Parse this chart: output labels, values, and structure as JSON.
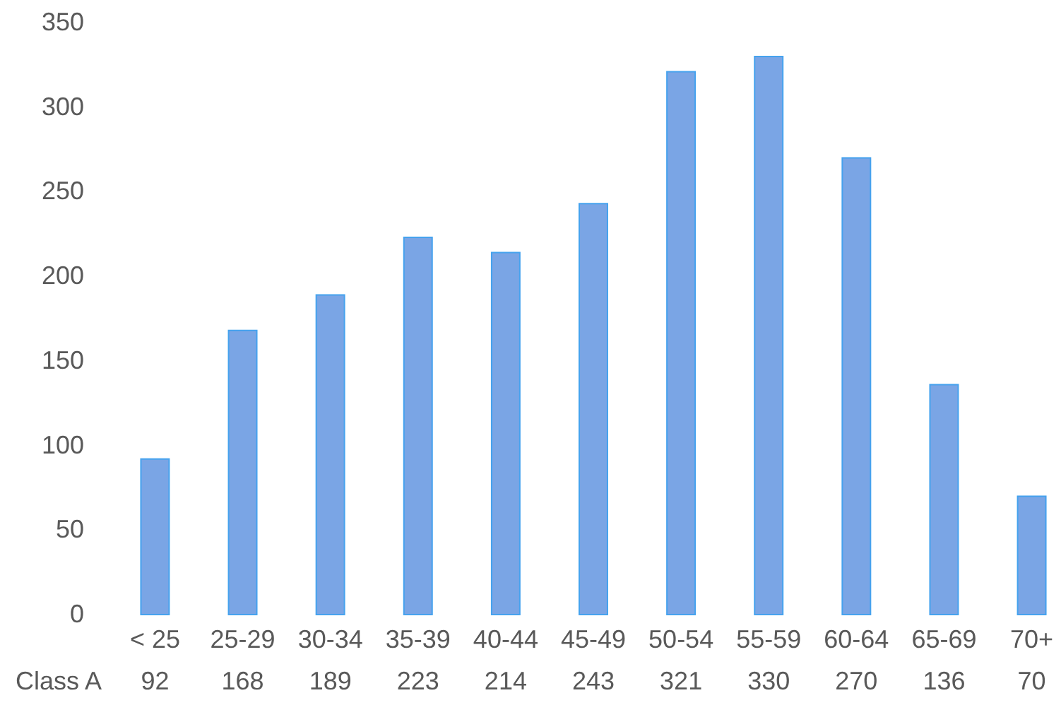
{
  "chart_data": {
    "type": "bar",
    "categories": [
      "< 25",
      "25-29",
      "30-34",
      "35-39",
      "40-44",
      "45-49",
      "50-54",
      "55-59",
      "60-64",
      "65-69",
      "70+"
    ],
    "series": [
      {
        "name": "Class A",
        "color": "#7aa5e5",
        "values": [
          92,
          168,
          189,
          223,
          214,
          243,
          321,
          330,
          270,
          136,
          70
        ]
      }
    ],
    "ylim": [
      0,
      350
    ],
    "yticks": [
      0,
      50,
      100,
      150,
      200,
      250,
      300,
      350
    ],
    "data_labels": true
  }
}
